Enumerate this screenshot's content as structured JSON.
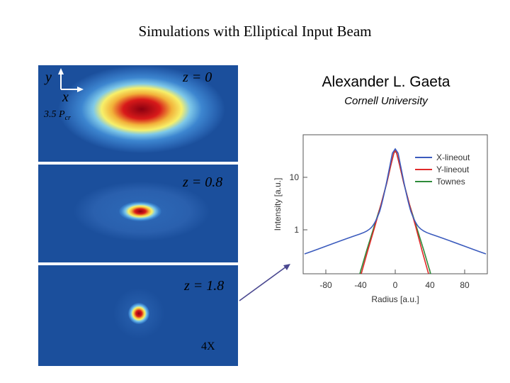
{
  "title": "Simulations with Elliptical Input Beam",
  "author": "Alexander L. Gaeta",
  "affiliation": "Cornell University",
  "panels": [
    {
      "z_label": "z = 0",
      "axis_y": "y",
      "axis_x": "x",
      "power_label": "3.5 P",
      "power_sub": "cr"
    },
    {
      "z_label": "z = 0.8"
    },
    {
      "z_label": "z = 1.8",
      "zoom_label": "4X"
    }
  ],
  "colors": {
    "beam_bg": "#1b4f9c",
    "arrow": "#4a4890"
  },
  "chart_data": {
    "type": "line",
    "xlabel": "Radius [a.u.]",
    "ylabel": "Intensity [a.u.]",
    "x_ticks": [
      "-80",
      "-40",
      "0",
      "40",
      "80"
    ],
    "y_ticks": [
      "1",
      "10"
    ],
    "legend": [
      "X-lineout",
      "Y-lineout",
      "Townes"
    ],
    "legend_position": "top-right",
    "series_colors": [
      "#3b5bbd",
      "#e02a2a",
      "#2e8b3a"
    ]
  }
}
